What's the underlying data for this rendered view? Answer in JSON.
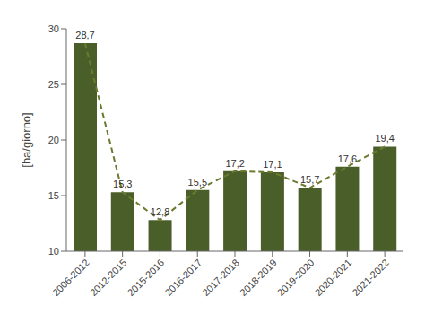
{
  "chart_data": {
    "type": "bar",
    "ylabel": "[ha/giorno]",
    "categories": [
      "2006-2012",
      "2012-2015",
      "2015-2016",
      "2016-2017",
      "2017-2018",
      "2018-2019",
      "2019-2020",
      "2020-2021",
      "2021-2022"
    ],
    "series": [
      {
        "type": "bar",
        "color": "#4a5e2a",
        "values": [
          28.7,
          15.3,
          12.8,
          15.5,
          17.2,
          17.1,
          15.7,
          17.6,
          19.4
        ],
        "value_labels": [
          "28,7",
          "15,3",
          "12,8",
          "15,5",
          "17,2",
          "17,1",
          "15,7",
          "17,6",
          "19,4"
        ]
      },
      {
        "type": "line",
        "color": "#6b7a2e",
        "line_style": "dashed",
        "values": [
          28.7,
          15.3,
          12.8,
          15.5,
          17.2,
          17.1,
          15.7,
          17.6,
          19.4
        ]
      }
    ],
    "ylim": [
      10,
      30
    ],
    "yticks": [
      10,
      15,
      20,
      25,
      30
    ],
    "data_labels": true,
    "grid": false
  }
}
